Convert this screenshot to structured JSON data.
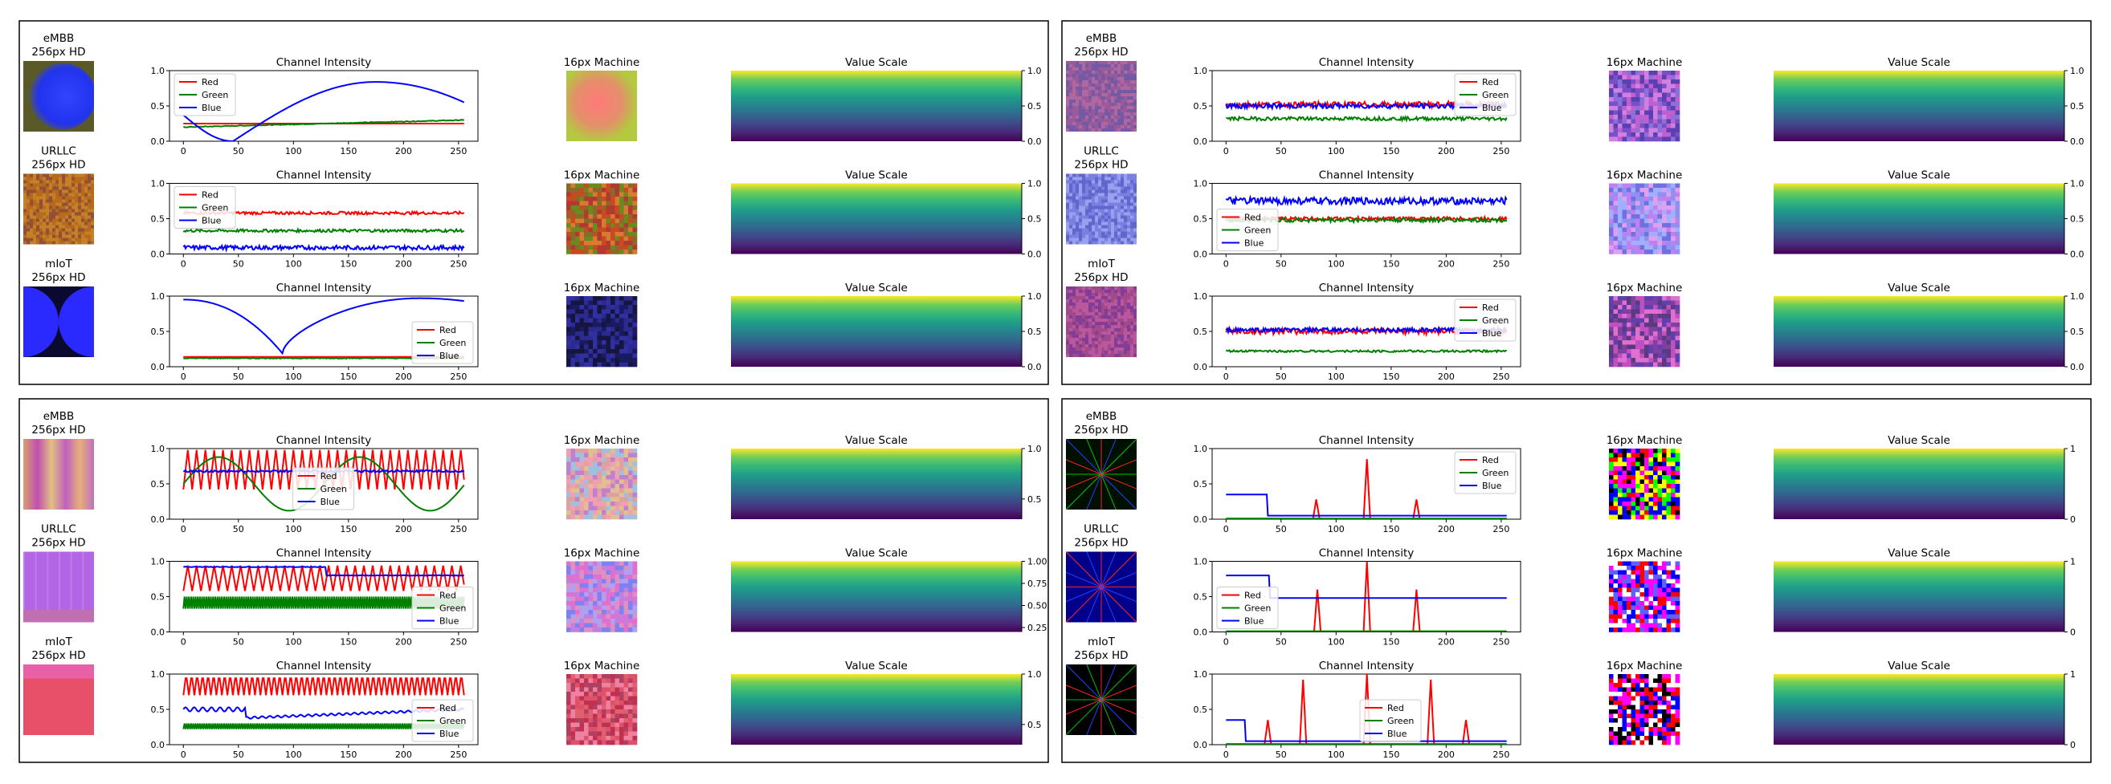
{
  "labels": {
    "intensity_title": "Channel Intensity",
    "machine_title": "16px Machine",
    "scale_title": "Value Scale",
    "resolution": "256px HD",
    "legend": [
      "Red",
      "Green",
      "Blue"
    ]
  },
  "colors": {
    "red": "#ff0000",
    "green": "#008000",
    "blue": "#0000ff",
    "frame": "#000000",
    "axis": "#000000"
  },
  "chart_data": {
    "type": "line",
    "x_ticks": [
      0,
      50,
      100,
      150,
      200,
      250
    ],
    "xlim": [
      0,
      255
    ],
    "ylim": [
      0,
      1
    ],
    "y_ticks": [
      0.0,
      0.5,
      1.0
    ],
    "colorbar_ticks_default": [
      "0.0",
      "0.5",
      "1.0"
    ],
    "panels": [
      {
        "name": "panel-smooth-shapes",
        "rows": [
          {
            "category": "eMBB",
            "thumb_style": "circle-blue-olive",
            "legend_pos": "upper-left",
            "series": [
              {
                "name": "Red",
                "kind": "flat",
                "base": 0.25,
                "noise": 0.0
              },
              {
                "name": "Green",
                "kind": "ramp",
                "from": 0.2,
                "to": 0.3,
                "noise": 0.005
              },
              {
                "name": "Blue",
                "kind": "arc",
                "start": 0.37,
                "min_x": 45,
                "min_v": 0.0,
                "peak_x": 175,
                "peak_v": 0.84,
                "end": 0.55
              }
            ],
            "colorbar_ticks": [
              "0.0",
              "0.5",
              "1.0"
            ]
          },
          {
            "category": "URLLC",
            "thumb_style": "noise-orange",
            "legend_pos": "upper-left",
            "series": [
              {
                "name": "Red",
                "kind": "flat",
                "base": 0.58,
                "noise": 0.02
              },
              {
                "name": "Green",
                "kind": "flat",
                "base": 0.33,
                "noise": 0.02
              },
              {
                "name": "Blue",
                "kind": "flat",
                "base": 0.09,
                "noise": 0.03
              }
            ],
            "colorbar_ticks": [
              "0.0",
              "0.5",
              "1.0"
            ]
          },
          {
            "category": "mIoT",
            "thumb_style": "circles-blue-dark",
            "legend_pos": "lower-right",
            "series": [
              {
                "name": "Red",
                "kind": "flat",
                "base": 0.14,
                "noise": 0.0
              },
              {
                "name": "Green",
                "kind": "flat",
                "base": 0.12,
                "noise": 0.005
              },
              {
                "name": "Blue",
                "kind": "valley",
                "start": 0.95,
                "min_x": 90,
                "min_v": 0.19,
                "peak_x": 215,
                "peak_v": 0.97,
                "end": 0.93
              }
            ],
            "colorbar_ticks": [
              "0.0",
              "0.5",
              "1.0"
            ]
          }
        ]
      },
      {
        "name": "panel-textures",
        "rows": [
          {
            "category": "eMBB",
            "thumb_style": "texture-purple",
            "legend_pos": "upper-right",
            "series": [
              {
                "name": "Red",
                "kind": "flat",
                "base": 0.52,
                "noise": 0.04
              },
              {
                "name": "Green",
                "kind": "flat",
                "base": 0.32,
                "noise": 0.025
              },
              {
                "name": "Blue",
                "kind": "flat",
                "base": 0.5,
                "noise": 0.035
              }
            ],
            "colorbar_ticks": [
              "0.0",
              "0.5",
              "1.0"
            ]
          },
          {
            "category": "URLLC",
            "thumb_style": "texture-lavender",
            "legend_pos": "lower-left",
            "series": [
              {
                "name": "Red",
                "kind": "flat",
                "base": 0.5,
                "noise": 0.025
              },
              {
                "name": "Green",
                "kind": "flat",
                "base": 0.48,
                "noise": 0.03
              },
              {
                "name": "Blue",
                "kind": "flat",
                "base": 0.75,
                "noise": 0.05
              }
            ],
            "colorbar_ticks": [
              "0.0",
              "0.5",
              "1.0"
            ]
          },
          {
            "category": "mIoT",
            "thumb_style": "texture-magenta",
            "legend_pos": "upper-right",
            "series": [
              {
                "name": "Red",
                "kind": "flat",
                "base": 0.5,
                "noise": 0.04
              },
              {
                "name": "Green",
                "kind": "flat",
                "base": 0.22,
                "noise": 0.015
              },
              {
                "name": "Blue",
                "kind": "flat",
                "base": 0.52,
                "noise": 0.03
              }
            ],
            "colorbar_ticks": [
              "0.0",
              "0.5",
              "1.0"
            ]
          }
        ]
      },
      {
        "name": "panel-stripes",
        "rows": [
          {
            "category": "eMBB",
            "thumb_style": "stripes-pink",
            "legend_pos": "center",
            "series": [
              {
                "name": "Red",
                "kind": "zigzag",
                "low": 0.42,
                "high": 0.98,
                "period": 8
              },
              {
                "name": "Green",
                "kind": "sine",
                "base": 0.5,
                "amp": 0.38,
                "period": 128,
                "phase": 0.0
              },
              {
                "name": "Blue",
                "kind": "flat",
                "base": 0.68,
                "noise": 0.015
              }
            ],
            "colorbar_ticks": [
              "0.5",
              "1.0"
            ]
          },
          {
            "category": "URLLC",
            "thumb_style": "stripes-violet",
            "legend_pos": "lower-right",
            "series": [
              {
                "name": "Red",
                "kind": "zigzag",
                "low": 0.58,
                "high": 0.94,
                "period": 8
              },
              {
                "name": "Green",
                "kind": "band",
                "low": 0.33,
                "high": 0.5
              },
              {
                "name": "Blue",
                "kind": "step",
                "before": 0.92,
                "after": 0.8,
                "step_x": 130
              }
            ],
            "colorbar_ticks": [
              "0.25",
              "0.50",
              "0.75",
              "1.00"
            ]
          },
          {
            "category": "mIoT",
            "thumb_style": "stripes-rose",
            "legend_pos": "lower-right",
            "series": [
              {
                "name": "Red",
                "kind": "zigzag",
                "low": 0.7,
                "high": 1.0,
                "period": 5
              },
              {
                "name": "Green",
                "kind": "band",
                "low": 0.22,
                "high": 0.3
              },
              {
                "name": "Blue",
                "kind": "sawramp",
                "before": 0.5,
                "after": 0.38,
                "step_x": 57,
                "end": 0.5
              }
            ],
            "colorbar_ticks": [
              "0.5",
              "1.0"
            ]
          }
        ]
      },
      {
        "name": "panel-spikes",
        "rows": [
          {
            "category": "eMBB",
            "thumb_style": "lines-dark",
            "legend_pos": "upper-right",
            "series": [
              {
                "name": "Red",
                "kind": "spikes",
                "base": 0.0,
                "spikes": [
                  [
                    82,
                    0.28
                  ],
                  [
                    128,
                    0.85
                  ],
                  [
                    173,
                    0.28
                  ]
                ]
              },
              {
                "name": "Green",
                "kind": "flat",
                "base": 0.01,
                "noise": 0.0
              },
              {
                "name": "Blue",
                "kind": "stepdown",
                "before": 0.35,
                "after": 0.05,
                "step_x": 38
              }
            ],
            "colorbar_ticks": [
              "0",
              "1"
            ]
          },
          {
            "category": "URLLC",
            "thumb_style": "lines-navy",
            "legend_pos": "lower-left",
            "series": [
              {
                "name": "Red",
                "kind": "spikes",
                "base": 0.0,
                "spikes": [
                  [
                    83,
                    0.6
                  ],
                  [
                    128,
                    1.0
                  ],
                  [
                    173,
                    0.6
                  ]
                ]
              },
              {
                "name": "Green",
                "kind": "flat",
                "base": 0.01,
                "noise": 0.0
              },
              {
                "name": "Blue",
                "kind": "stepdown",
                "before": 0.8,
                "after": 0.48,
                "step_x": 40
              }
            ],
            "colorbar_ticks": [
              "0",
              "1"
            ]
          },
          {
            "category": "mIoT",
            "thumb_style": "lines-black",
            "legend_pos": "lower-center",
            "series": [
              {
                "name": "Red",
                "kind": "spikes",
                "base": 0.0,
                "spikes": [
                  [
                    38,
                    0.35
                  ],
                  [
                    70,
                    0.92
                  ],
                  [
                    128,
                    1.0
                  ],
                  [
                    186,
                    0.92
                  ],
                  [
                    218,
                    0.35
                  ]
                ]
              },
              {
                "name": "Green",
                "kind": "flat",
                "base": 0.01,
                "noise": 0.0
              },
              {
                "name": "Blue",
                "kind": "stepdown",
                "before": 0.35,
                "after": 0.05,
                "step_x": 18
              }
            ],
            "colorbar_ticks": [
              "0",
              "1"
            ]
          }
        ]
      }
    ]
  }
}
